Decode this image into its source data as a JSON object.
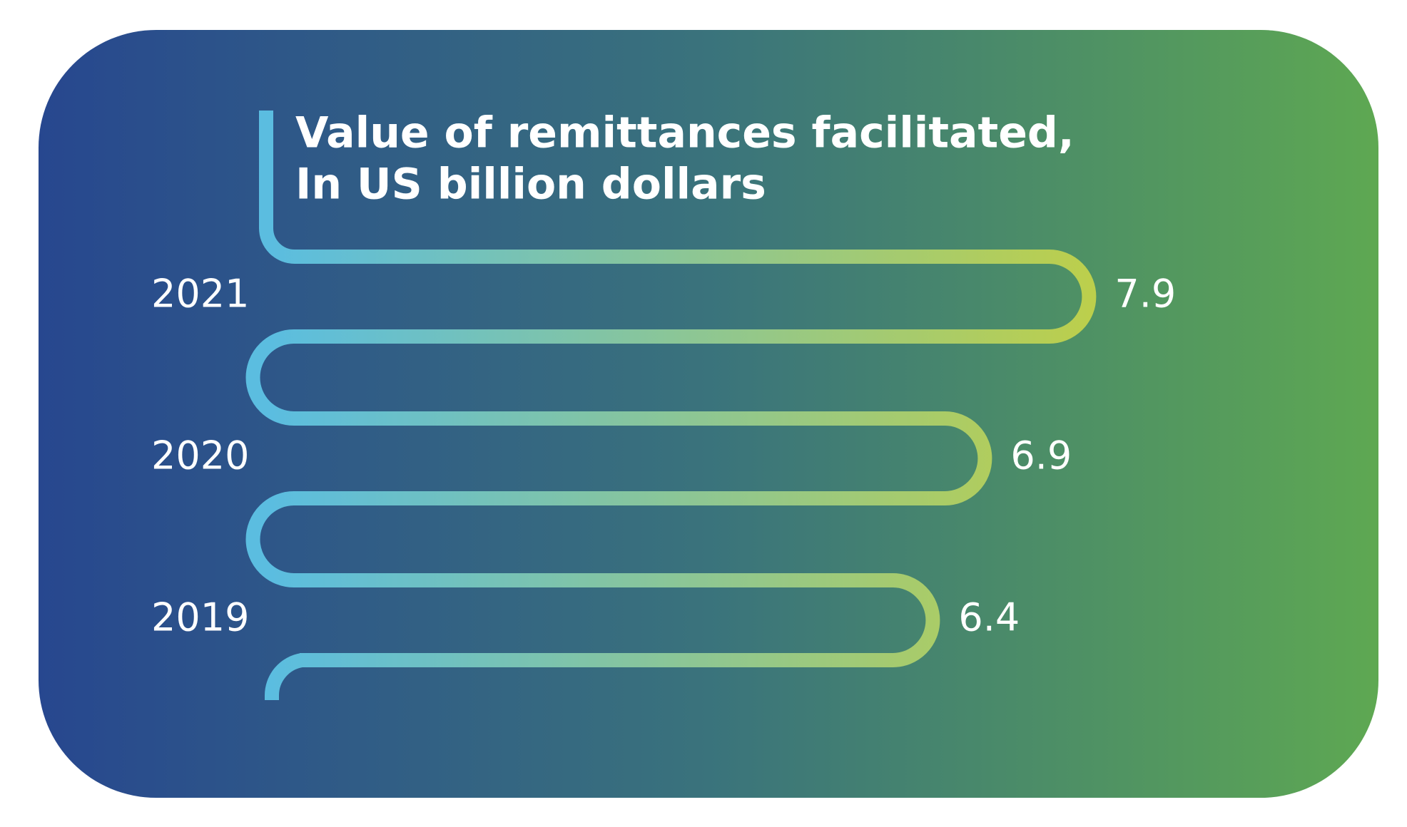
{
  "chart_data": {
    "type": "bar",
    "orientation": "horizontal",
    "title": "Value of remittances facilitated,",
    "subtitle": "In US billion dollars",
    "categories": [
      "2021",
      "2020",
      "2019"
    ],
    "values": [
      7.9,
      6.9,
      6.4
    ],
    "colors": [
      "#5bbde0",
      "#bccf4c"
    ]
  }
}
